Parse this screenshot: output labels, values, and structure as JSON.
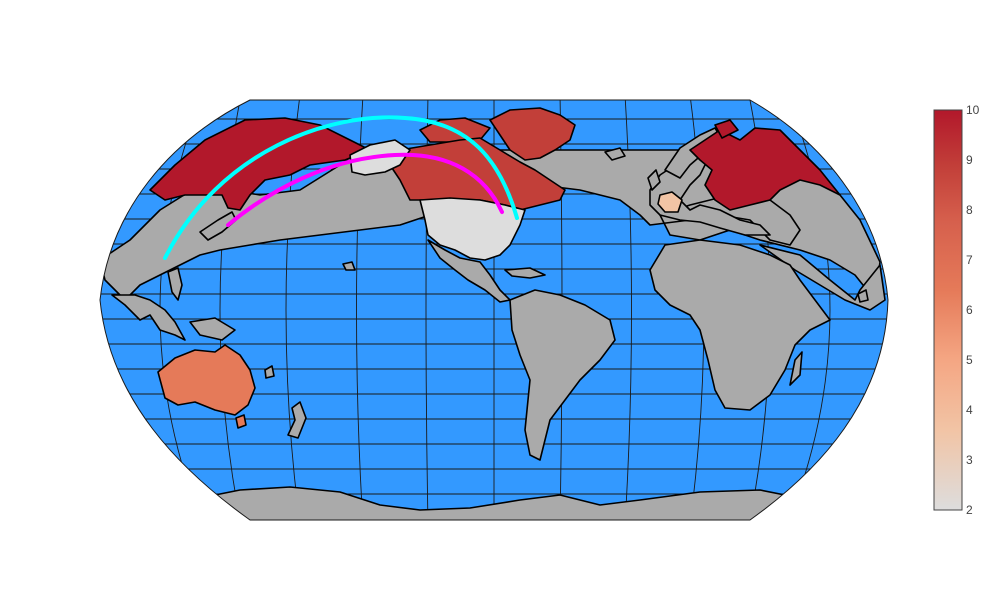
{
  "colors": {
    "ocean": "#3399ff",
    "land": "#aaaaaa",
    "border": "#000000",
    "route_1": "#00ffff",
    "route_2": "#ff00ff",
    "colorscale": [
      "#dddddd",
      "#f2c4a5",
      "#f4a582",
      "#e57a59",
      "#d6604d",
      "#c23f39",
      "#b2182b"
    ]
  },
  "projection": "kavrayskiy7",
  "choropleth": [
    {
      "region": "Russia",
      "value": 10
    },
    {
      "region": "Canada",
      "value": 8
    },
    {
      "region": "Greenland",
      "value": 8
    },
    {
      "region": "Australia",
      "value": 6
    },
    {
      "region": "France",
      "value": 4
    },
    {
      "region": "United States",
      "value": 2
    },
    {
      "region": "Alaska",
      "value": 2
    }
  ],
  "routes": [
    {
      "color": "#00ffff",
      "path": "cyan-great-circle"
    },
    {
      "color": "#ff00ff",
      "path": "magenta-great-circle"
    }
  ],
  "colorbar": {
    "min": 2,
    "max": 10,
    "ticks": [
      "2",
      "3",
      "4",
      "5",
      "6",
      "7",
      "8",
      "9",
      "10"
    ]
  }
}
